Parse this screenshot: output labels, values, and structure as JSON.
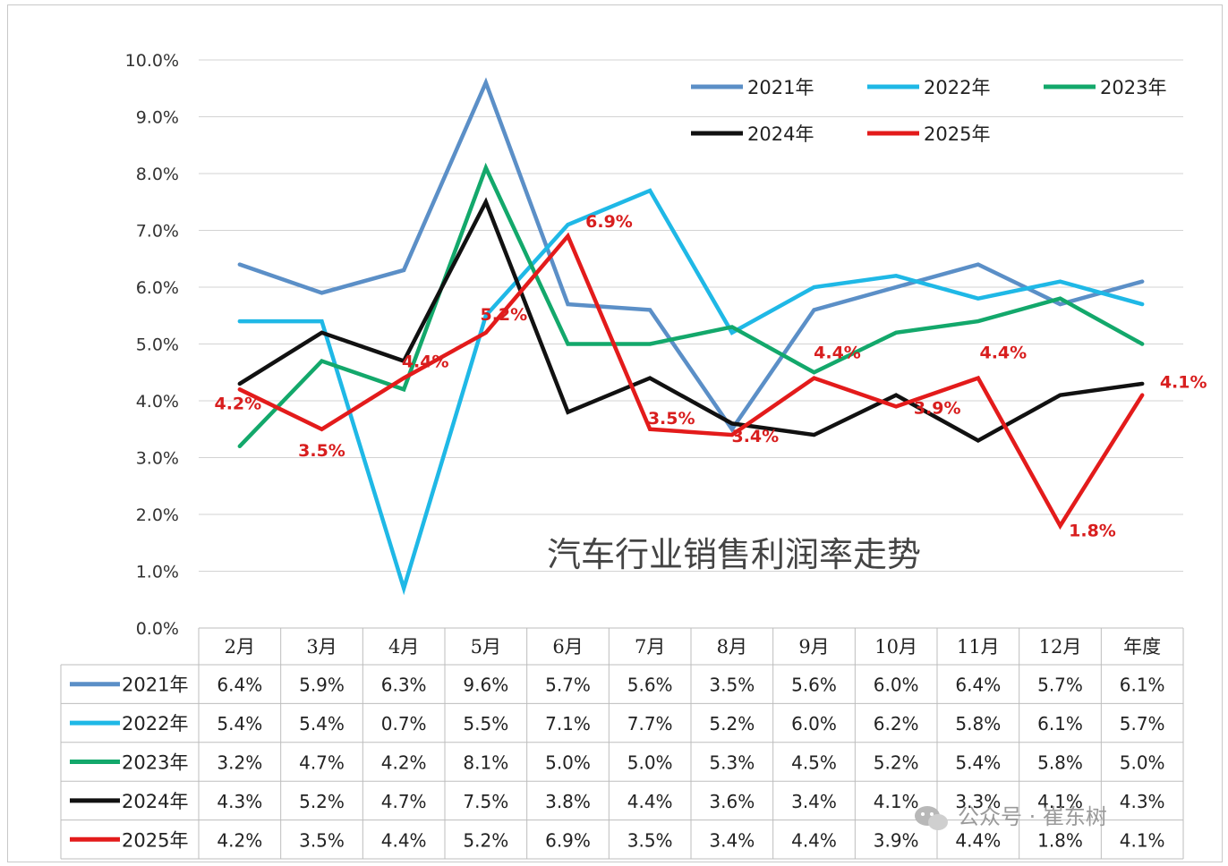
{
  "chart_data": {
    "type": "line",
    "title": "汽车行业销售利润率走势",
    "categories": [
      "2月",
      "3月",
      "4月",
      "5月",
      "6月",
      "7月",
      "8月",
      "9月",
      "10月",
      "11月",
      "12月",
      "年度"
    ],
    "yticks": [
      "0.0%",
      "1.0%",
      "2.0%",
      "3.0%",
      "4.0%",
      "5.0%",
      "6.0%",
      "7.0%",
      "8.0%",
      "9.0%",
      "10.0%"
    ],
    "ylim": [
      0,
      10
    ],
    "grid": true,
    "legend_position": "top-right",
    "series": [
      {
        "name": "2021年",
        "color": "#5b8fc7",
        "values": [
          6.4,
          5.9,
          6.3,
          9.6,
          5.7,
          5.6,
          3.5,
          5.6,
          6.0,
          6.4,
          5.7,
          6.1
        ],
        "labels": [
          "6.4%",
          "5.9%",
          "6.3%",
          "9.6%",
          "5.7%",
          "5.6%",
          "3.5%",
          "5.6%",
          "6.0%",
          "6.4%",
          "5.7%",
          "6.1%"
        ]
      },
      {
        "name": "2022年",
        "color": "#1fb8e6",
        "values": [
          5.4,
          5.4,
          0.7,
          5.5,
          7.1,
          7.7,
          5.2,
          6.0,
          6.2,
          5.8,
          6.1,
          5.7
        ],
        "labels": [
          "5.4%",
          "5.4%",
          "0.7%",
          "5.5%",
          "7.1%",
          "7.7%",
          "5.2%",
          "6.0%",
          "6.2%",
          "5.8%",
          "6.1%",
          "5.7%"
        ]
      },
      {
        "name": "2023年",
        "color": "#13a86b",
        "values": [
          3.2,
          4.7,
          4.2,
          8.1,
          5.0,
          5.0,
          5.3,
          4.5,
          5.2,
          5.4,
          5.8,
          5.0
        ],
        "labels": [
          "3.2%",
          "4.7%",
          "4.2%",
          "8.1%",
          "5.0%",
          "5.0%",
          "5.3%",
          "4.5%",
          "5.2%",
          "5.4%",
          "5.8%",
          "5.0%"
        ]
      },
      {
        "name": "2024年",
        "color": "#111111",
        "values": [
          4.3,
          5.2,
          4.7,
          7.5,
          3.8,
          4.4,
          3.6,
          3.4,
          4.1,
          3.3,
          4.1,
          4.3
        ],
        "labels": [
          "4.3%",
          "5.2%",
          "4.7%",
          "7.5%",
          "3.8%",
          "4.4%",
          "3.6%",
          "3.4%",
          "4.1%",
          "3.3%",
          "4.1%",
          "4.3%"
        ]
      },
      {
        "name": "2025年",
        "color": "#e31b1b",
        "values": [
          4.2,
          3.5,
          4.4,
          5.2,
          6.9,
          3.5,
          3.4,
          4.4,
          3.9,
          4.4,
          1.8,
          4.1
        ],
        "labels": [
          "4.2%",
          "3.5%",
          "4.4%",
          "5.2%",
          "6.9%",
          "3.5%",
          "3.4%",
          "4.4%",
          "3.9%",
          "4.4%",
          "1.8%",
          "4.1%"
        ]
      }
    ],
    "annotated_series": "2025年"
  },
  "watermark": "公众号 · 崔东树"
}
